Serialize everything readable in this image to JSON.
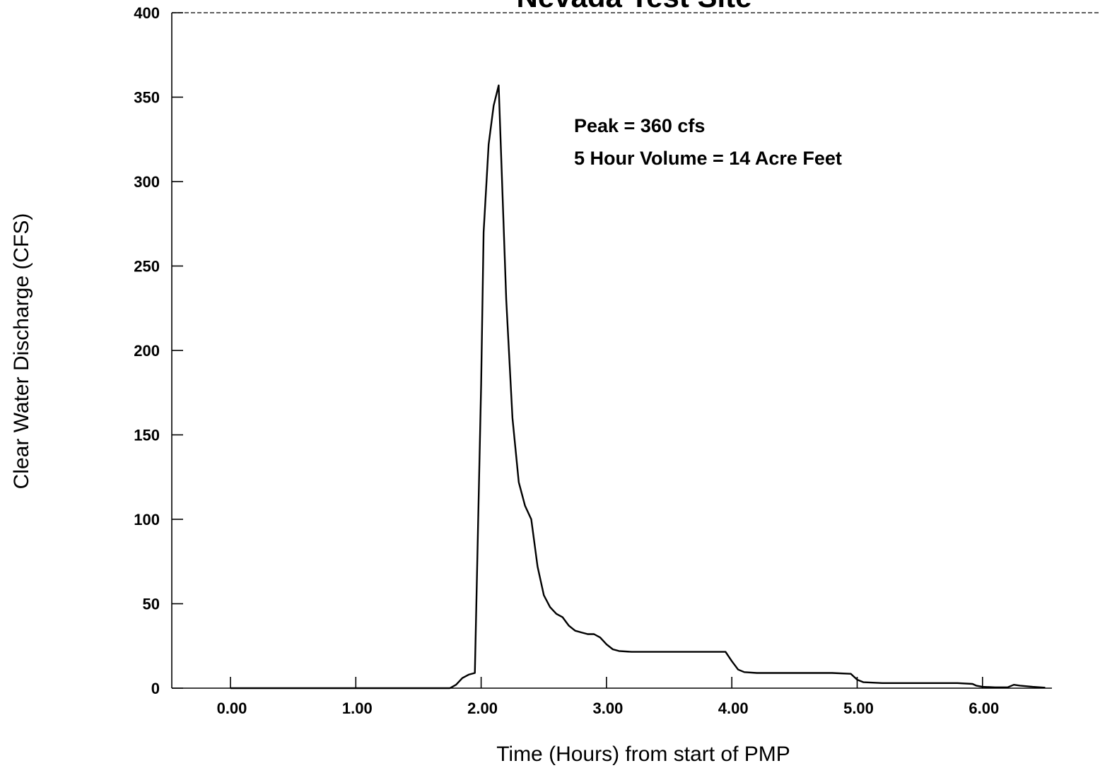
{
  "chart_data": {
    "type": "line",
    "title": "Nevada Test Site",
    "xlabel": "Time (Hours) from start of PMP",
    "ylabel": "Clear Water Discharge (CFS)",
    "xlim": [
      -0.47,
      6.55
    ],
    "ylim": [
      0,
      400
    ],
    "x_ticks": [
      0,
      1,
      2,
      3,
      4,
      5,
      6
    ],
    "x_tick_labels": [
      "0.00",
      "1.00",
      "2.00",
      "3.00",
      "4.00",
      "5.00",
      "6.00"
    ],
    "y_ticks": [
      0,
      50,
      100,
      150,
      200,
      250,
      300,
      350,
      400
    ],
    "y_tick_labels": [
      "0",
      "50",
      "100",
      "150",
      "200",
      "250",
      "300",
      "350",
      "400"
    ],
    "grid": false,
    "annotations": [
      {
        "text": "Peak = 360 cfs"
      },
      {
        "text": "5 Hour Volume = 14 Acre Feet"
      }
    ],
    "series": [
      {
        "x": [
          0.0,
          1.75,
          1.8,
          1.85,
          1.9,
          1.95,
          2.0,
          2.02,
          2.06,
          2.1,
          2.14,
          2.2,
          2.25,
          2.3,
          2.35,
          2.4,
          2.45,
          2.5,
          2.55,
          2.6,
          2.65,
          2.7,
          2.75,
          2.8,
          2.85,
          2.9,
          2.95,
          3.0,
          3.05,
          3.1,
          3.2,
          3.3,
          3.5,
          3.75,
          3.95,
          4.0,
          4.05,
          4.1,
          4.2,
          4.4,
          4.6,
          4.8,
          4.95,
          5.0,
          5.05,
          5.2,
          5.5,
          5.8,
          5.92,
          5.95,
          6.0,
          6.1,
          6.2,
          6.25,
          6.3,
          6.4,
          6.5
        ],
        "y": [
          0,
          0,
          2,
          6,
          8,
          9,
          180,
          270,
          322,
          345,
          357,
          230,
          160,
          122,
          108,
          100,
          72,
          55,
          48,
          44,
          42,
          37,
          34,
          33,
          32,
          32,
          30,
          26,
          23,
          22,
          21.5,
          21.5,
          21.5,
          21.5,
          21.5,
          16,
          11,
          9.5,
          9,
          9,
          9,
          9,
          8.5,
          5,
          3.5,
          3,
          3,
          3,
          2.5,
          1.5,
          0.8,
          0.5,
          0.5,
          2,
          1.5,
          0.8,
          0.3
        ]
      }
    ]
  }
}
